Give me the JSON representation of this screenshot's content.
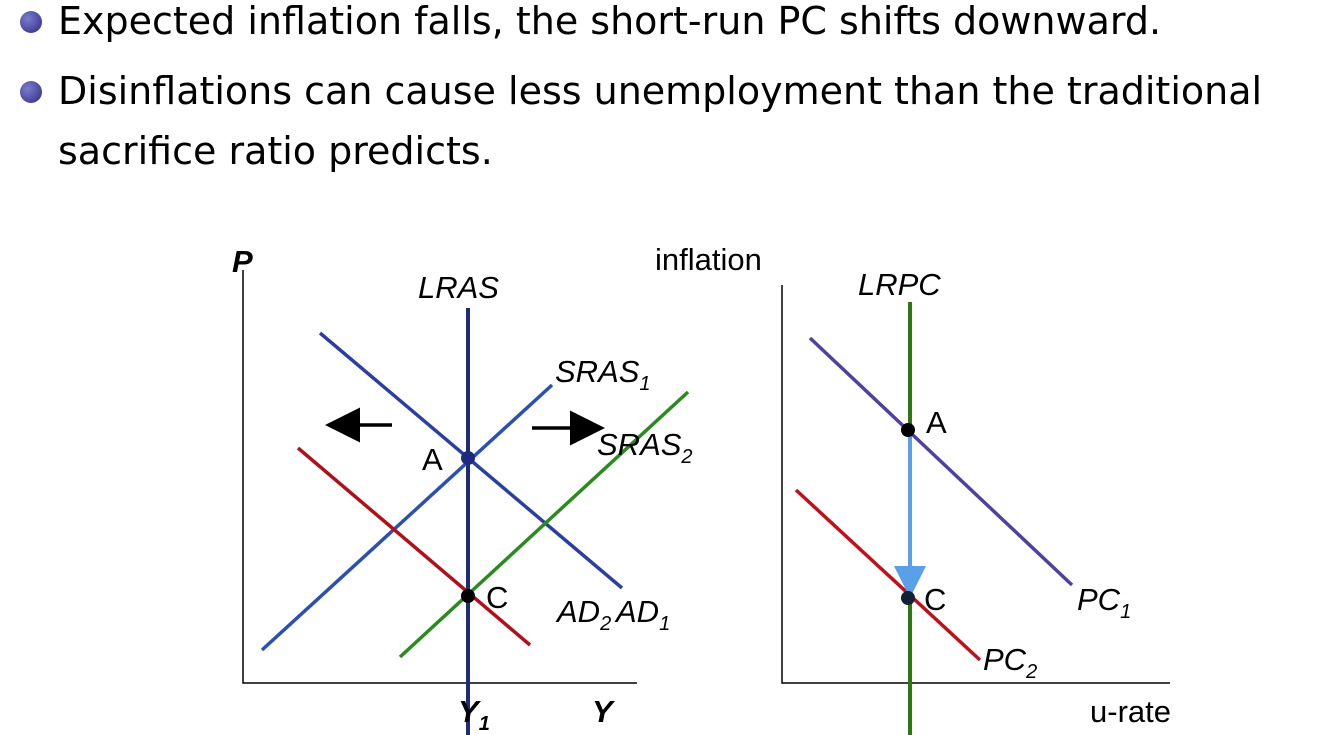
{
  "bullets": [
    "Expected inflation falls, the short-run PC shifts downward.",
    "Disinflations can cause less unemployment than the traditional",
    "sacrifice ratio predicts."
  ],
  "left_diagram": {
    "y_axis": "P",
    "x_axis": "Y",
    "x_mark": {
      "text": "Y",
      "sub": "1"
    },
    "lras": "LRAS",
    "sras1": {
      "text": "SRAS",
      "sub": "1"
    },
    "sras2": {
      "text": "SRAS",
      "sub": "2"
    },
    "ad1": {
      "text": "AD",
      "sub": "1"
    },
    "ad2": {
      "text": "AD",
      "sub": "2"
    },
    "point_a": "A",
    "point_c": "C"
  },
  "right_diagram": {
    "y_axis": "inflation",
    "x_axis": "u-rate",
    "lrpc": "LRPC",
    "pc1": {
      "text": "PC",
      "sub": "1"
    },
    "pc2": {
      "text": "PC",
      "sub": "2"
    },
    "point_a": "A",
    "point_c": "C"
  }
}
